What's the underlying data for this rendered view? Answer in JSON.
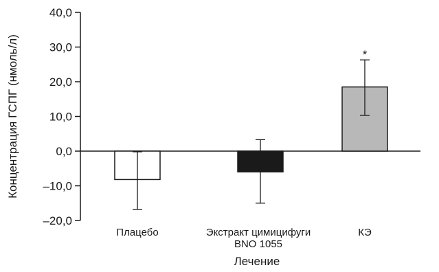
{
  "chart_data": {
    "type": "bar",
    "title": "",
    "xlabel": "Лечение",
    "ylabel": "Концентрация ГСПГ (нмоль/л)",
    "ylim": [
      -20,
      40
    ],
    "yticks": [
      40,
      30,
      20,
      10,
      0,
      -10,
      -20
    ],
    "ytick_labels": [
      "40,0",
      "30,0",
      "20,0",
      "10,0",
      "0,0",
      "–10,0",
      "–20,0"
    ],
    "grid": false,
    "categories": [
      {
        "label": [
          "Плацебо"
        ],
        "value": -8.2,
        "err_low": -16.8,
        "err_high": -0.2,
        "fill": "#ffffff"
      },
      {
        "label": [
          "Экстракт цимицифуги",
          "BNO 1055"
        ],
        "value": -6.0,
        "err_low": -15.0,
        "err_high": 3.3,
        "fill": "#1a1a1a"
      },
      {
        "label": [
          "КЭ"
        ],
        "value": 18.5,
        "err_low": 10.3,
        "err_high": 26.3,
        "fill": "#b8b8b8",
        "annotation": "*"
      }
    ]
  }
}
